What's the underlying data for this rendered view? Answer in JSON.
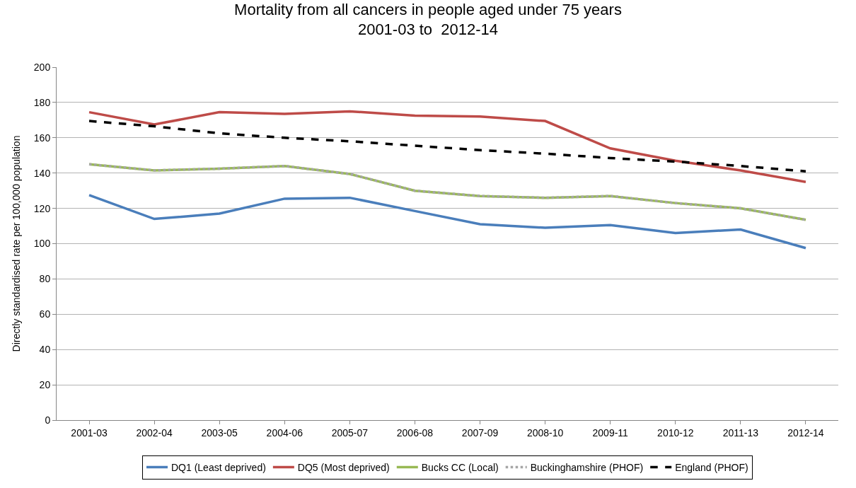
{
  "chart_data": {
    "type": "line",
    "title": "Mortality from all cancers in people aged under 75 years\n2001-03 to  2012-14",
    "ylabel": "Directly standardised rate per 100,000 population",
    "categories": [
      "2001-03",
      "2002-04",
      "2003-05",
      "2004-06",
      "2005-07",
      "2006-08",
      "2007-09",
      "2008-10",
      "2009-11",
      "2010-12",
      "2011-13",
      "2012-14"
    ],
    "series": [
      {
        "name": "DQ1 (Least deprived)",
        "color": "#4a7ebb",
        "line_style": "solid",
        "values": [
          127.5,
          114,
          117,
          125.5,
          126,
          118.5,
          111,
          109,
          110.5,
          106,
          108,
          97.5
        ]
      },
      {
        "name": "DQ5 (Most deprived)",
        "color": "#be4b48",
        "line_style": "solid",
        "values": [
          174.5,
          167.5,
          174.5,
          173.5,
          175,
          172.5,
          172,
          169.5,
          154,
          147,
          141.5,
          135
        ]
      },
      {
        "name": "Bucks CC (Local)",
        "color": "#98b954",
        "line_style": "solid",
        "values": [
          145,
          141.5,
          142.5,
          144,
          139.5,
          130,
          127,
          126,
          127,
          123,
          120,
          113.5
        ]
      },
      {
        "name": "Buckinghamshire (PHOF)",
        "color": "#a5a5a5",
        "line_style": "dotted",
        "values": [
          145,
          141.5,
          142.5,
          144,
          139.5,
          130,
          127,
          126,
          127,
          123,
          120,
          113.5
        ]
      },
      {
        "name": "England (PHOF)",
        "color": "#000000",
        "line_style": "dashed",
        "values": [
          169.5,
          166.5,
          162.5,
          160,
          158,
          155.5,
          153,
          151,
          148.5,
          146.5,
          144,
          141
        ]
      }
    ],
    "ylim": [
      0,
      200
    ],
    "yticks": [
      0,
      20,
      40,
      60,
      80,
      100,
      120,
      140,
      160,
      180,
      200
    ],
    "grid": "y",
    "legend": "bottom",
    "marker": "none"
  }
}
